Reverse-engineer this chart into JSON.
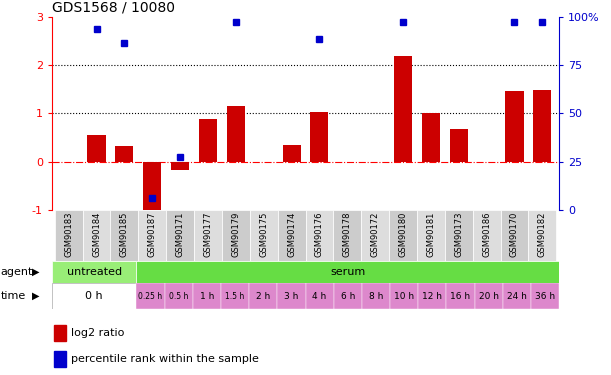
{
  "title": "GDS1568 / 10080",
  "samples": [
    "GSM90183",
    "GSM90184",
    "GSM90185",
    "GSM90187",
    "GSM90171",
    "GSM90177",
    "GSM90179",
    "GSM90175",
    "GSM90174",
    "GSM90176",
    "GSM90178",
    "GSM90172",
    "GSM90180",
    "GSM90181",
    "GSM90173",
    "GSM90186",
    "GSM90170",
    "GSM90182"
  ],
  "log2_ratio": [
    0.0,
    0.55,
    0.32,
    -1.05,
    -0.18,
    0.88,
    1.15,
    0.0,
    0.35,
    1.02,
    0.0,
    0.0,
    2.2,
    1.0,
    0.68,
    0.0,
    1.46,
    1.48
  ],
  "percentile_left_axis": [
    null,
    2.75,
    2.45,
    -0.75,
    0.1,
    null,
    2.9,
    null,
    null,
    2.55,
    null,
    null,
    2.9,
    null,
    null,
    null,
    2.9,
    2.9
  ],
  "bar_color": "#cc0000",
  "dot_color": "#0000cc",
  "ylim_left": [
    -1.0,
    3.0
  ],
  "ylim_right": [
    0,
    100
  ],
  "yticks_left": [
    -1,
    0,
    1,
    2,
    3
  ],
  "yticks_right": [
    0,
    25,
    50,
    75,
    100
  ],
  "yticklabels_left": [
    "-1",
    "0",
    "1",
    "2",
    "3"
  ],
  "yticklabels_right": [
    "0",
    "25",
    "50",
    "75",
    "100%"
  ],
  "right_axis_color": "#0000cc",
  "agent_untreated_color": "#99ee77",
  "agent_serum_color": "#66dd44",
  "time_untreated_color": "#ffffff",
  "time_serum_color": "#dd88cc",
  "sample_col_color_even": "#cccccc",
  "sample_col_color_odd": "#dddddd",
  "legend_red_label": "log2 ratio",
  "legend_blue_label": "percentile rank within the sample",
  "n_samples": 18,
  "n_untreated": 3,
  "serum_times": [
    "0.25 h",
    "0.5 h",
    "1 h",
    "1.5 h",
    "2 h",
    "3 h",
    "4 h",
    "6 h",
    "8 h",
    "10 h",
    "12 h",
    "16 h",
    "20 h",
    "24 h",
    "36 h"
  ]
}
